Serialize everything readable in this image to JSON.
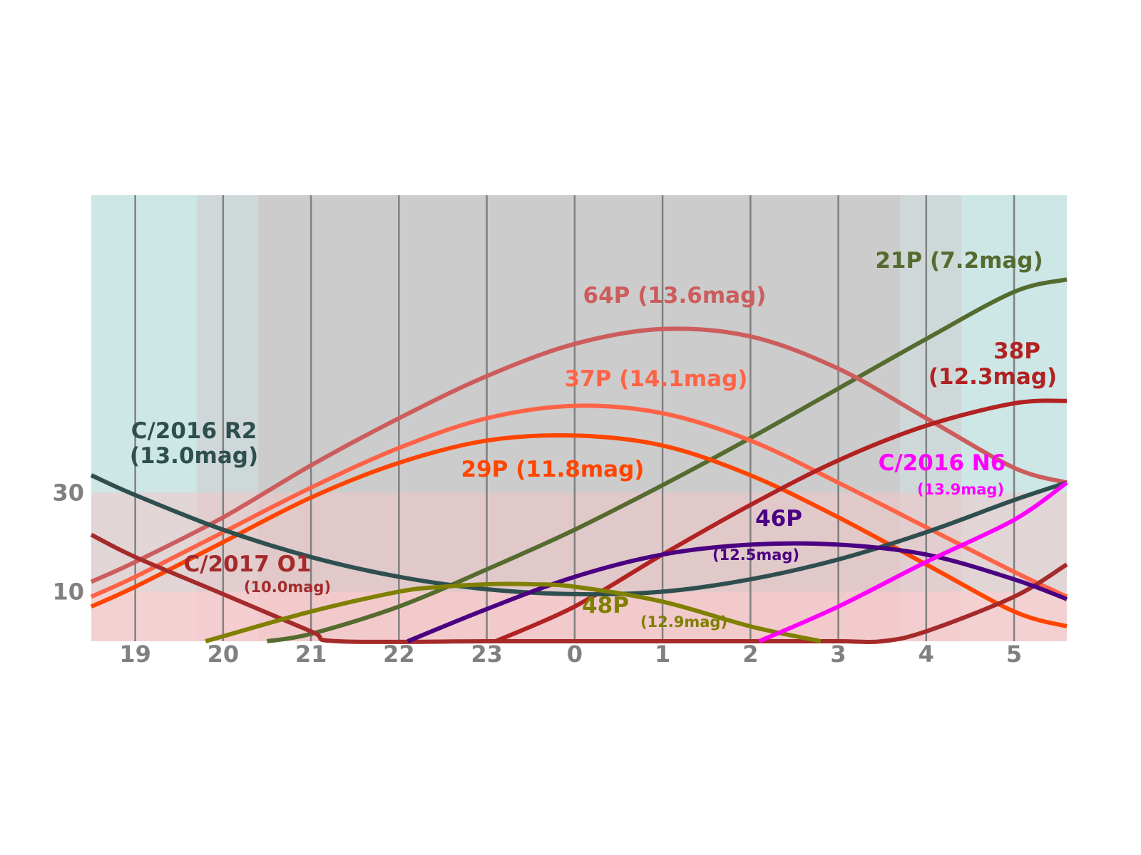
{
  "chart_data": {
    "type": "line",
    "title": "",
    "xlabel": "",
    "ylabel": "",
    "xlim": [
      18.5,
      29.6
    ],
    "ylim": [
      0,
      90
    ],
    "x_ticks": [
      19,
      20,
      21,
      22,
      23,
      24,
      25,
      26,
      27,
      28,
      29
    ],
    "x_tick_labels": [
      "19",
      "20",
      "21",
      "22",
      "23",
      "0",
      "1",
      "2",
      "3",
      "4",
      "5"
    ],
    "y_ticks": [
      10,
      30
    ],
    "y_tick_labels": [
      "10",
      "30"
    ],
    "grid": "vertical lines at each hour",
    "legend": "none (labels placed next to curves)",
    "background_bands": {
      "sky_twilight": {
        "x": [
          18.5,
          29.6
        ],
        "color": "#cde6e6"
      },
      "astronomical_dark": {
        "x": [
          19.7,
          28.4
        ],
        "color": "#cfd8d8"
      },
      "night": {
        "x": [
          20.4,
          27.7
        ],
        "color": "#cccccc"
      },
      "low_altitude_30": {
        "y": [
          10,
          30
        ],
        "color": "#f2c6c8"
      },
      "very_low_altitude_10": {
        "y": [
          0,
          10
        ],
        "color": "#ffc9cc"
      }
    },
    "series": [
      {
        "name": "21P",
        "mag": "(7.2mag)",
        "color": "#556b2f",
        "x": [
          20.5,
          21,
          22,
          23,
          24,
          25,
          26,
          27,
          28,
          29,
          29.6
        ],
        "y": [
          0,
          1.5,
          7,
          14.5,
          22.5,
          31.5,
          41,
          51,
          61,
          70.5,
          73
        ]
      },
      {
        "name": "64P",
        "mag": "(13.6mag)",
        "color": "#cd5c5c",
        "x": [
          18.5,
          19,
          20,
          21,
          22,
          23,
          24,
          25,
          26,
          27,
          28,
          29,
          29.6
        ],
        "y": [
          12,
          16,
          25,
          35.5,
          45,
          53.5,
          60,
          63,
          61.5,
          55,
          45,
          35,
          32
        ]
      },
      {
        "name": "37P",
        "mag": "(14.1mag)",
        "color": "#ff6347",
        "x": [
          18.5,
          19,
          20,
          21,
          22,
          23,
          24,
          25,
          26,
          27,
          28,
          29,
          29.6
        ],
        "y": [
          9,
          13,
          22,
          31,
          39,
          45,
          47.5,
          46,
          40.5,
          32,
          23,
          14,
          9
        ]
      },
      {
        "name": "29P",
        "mag": "(11.8mag)",
        "color": "#ff4500",
        "x": [
          18.5,
          19,
          20,
          21,
          22,
          23,
          24,
          25,
          26,
          27,
          28,
          29,
          29.6
        ],
        "y": [
          7,
          11,
          20,
          29,
          36,
          40.5,
          41.5,
          39.5,
          33.5,
          25,
          15.5,
          6,
          3
        ]
      },
      {
        "name": "38P",
        "mag": "(12.3mag)",
        "color": "#b22222",
        "x": [
          23.1,
          24,
          25,
          26,
          27,
          28,
          29,
          29.6
        ],
        "y": [
          0,
          7,
          17.5,
          27.5,
          36.5,
          43.5,
          48,
          48.5
        ]
      },
      {
        "name": "C/2016 R2",
        "mag": "(13.0mag)",
        "color": "#2f4f4f",
        "x": [
          18.5,
          19,
          20,
          21,
          22,
          23,
          24,
          25,
          26,
          27,
          28,
          29,
          29.6
        ],
        "y": [
          33.5,
          29.5,
          22.5,
          17,
          13,
          10.5,
          9.5,
          10,
          12.5,
          16.5,
          22,
          28.5,
          32
        ]
      },
      {
        "name": "C/2017 O1",
        "mag": "(10.0mag)",
        "color": "#a52a2a",
        "x": [
          18.5,
          19,
          20,
          21,
          21.3,
          23,
          24,
          25,
          26,
          27,
          27.5,
          28,
          29,
          29.6
        ],
        "y": [
          21.5,
          17,
          9.5,
          2,
          0,
          0,
          0,
          0,
          0,
          0,
          0,
          2,
          9,
          15.5
        ]
      },
      {
        "name": "46P",
        "mag": "(12.5mag)",
        "color": "#4b0082",
        "x": [
          22.1,
          23,
          24,
          25,
          26,
          27,
          28,
          29,
          29.6
        ],
        "y": [
          0,
          6.5,
          13,
          17.5,
          19.5,
          19.5,
          17.5,
          12.5,
          8.5
        ]
      },
      {
        "name": "48P",
        "mag": "(12.9mag)",
        "color": "#808000",
        "x": [
          19.8,
          20,
          21,
          22,
          22.5,
          23,
          23.5,
          24,
          25,
          26,
          26.8
        ],
        "y": [
          0,
          1,
          6,
          10,
          11,
          11.5,
          11.5,
          11,
          8,
          3,
          0
        ]
      },
      {
        "name": "C/2016 N6",
        "mag": "(13.9mag)",
        "color": "#ff00ff",
        "x": [
          26.1,
          27,
          28,
          29,
          29.6
        ],
        "y": [
          0,
          7,
          16,
          24.5,
          32
        ]
      }
    ],
    "annotations": [
      {
        "name": "21P",
        "mag": "(7.2mag)",
        "color": "#556b2f"
      },
      {
        "name": "64P",
        "mag": "(13.6mag)",
        "color": "#cd5c5c"
      },
      {
        "name": "37P",
        "mag": "(14.1mag)",
        "color": "#ff6347"
      },
      {
        "name": "29P",
        "mag": "(11.8mag)",
        "color": "#ff4500"
      },
      {
        "name": "38P",
        "mag": "(12.3mag)",
        "color": "#b22222"
      },
      {
        "name": "C/2016 R2",
        "mag": "(13.0mag)",
        "color": "#2f4f4f"
      },
      {
        "name": "C/2017 O1",
        "mag": "(10.0mag)",
        "color": "#a52a2a"
      },
      {
        "name": "46P",
        "mag": "(12.5mag)",
        "color": "#4b0082"
      },
      {
        "name": "48P",
        "mag": "(12.9mag)",
        "color": "#808000"
      },
      {
        "name": "C/2016 N6",
        "mag": "(13.9mag)",
        "color": "#ff00ff"
      }
    ]
  }
}
